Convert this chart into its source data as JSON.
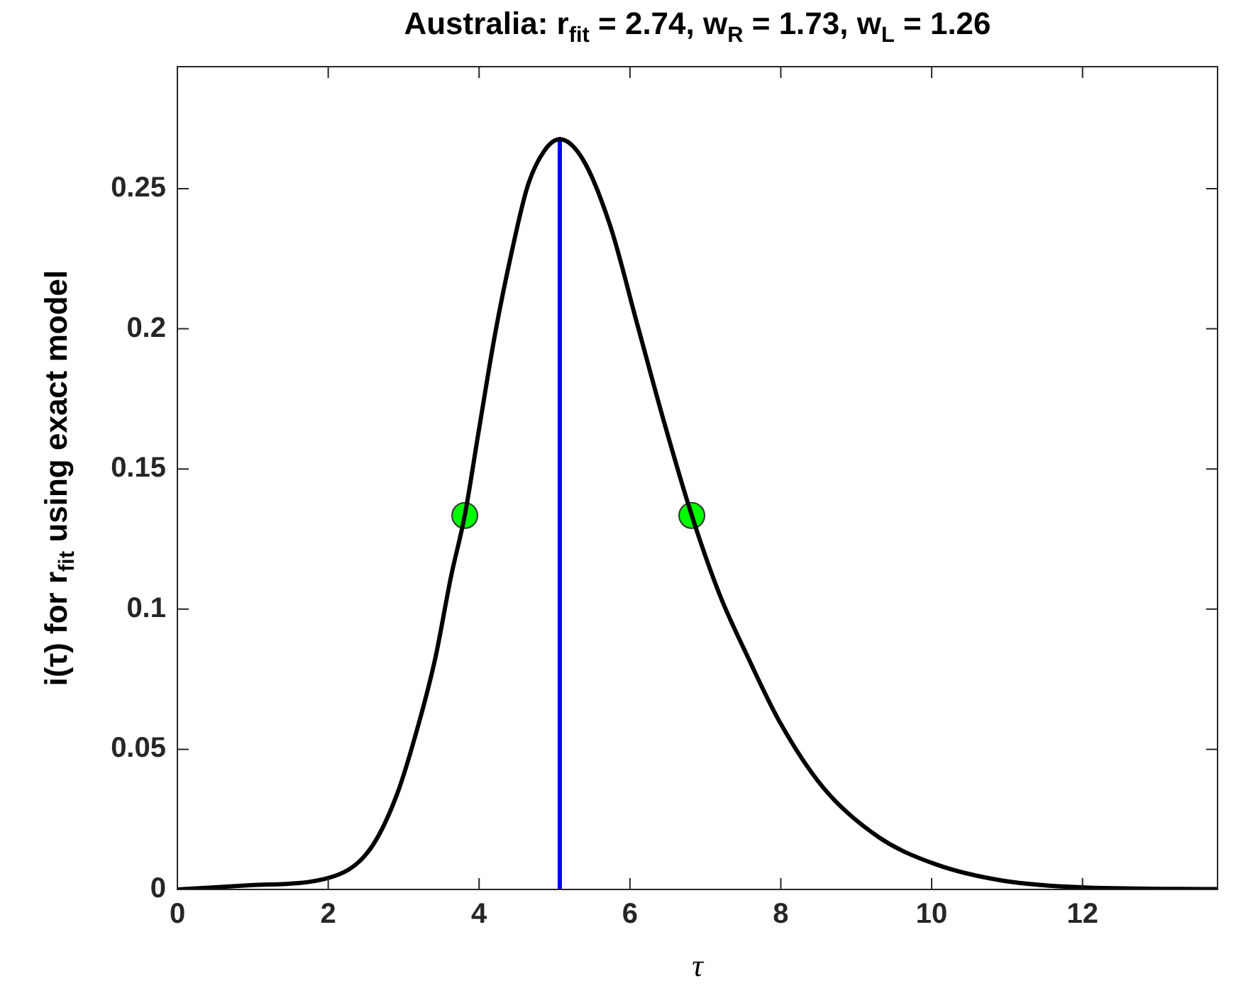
{
  "chart_data": {
    "type": "line",
    "title": "Australia: r$_{fit}$ = 2.74, w$_{R}$ = 1.73, w$_{L}$ = 1.26",
    "xlabel": "τ",
    "ylabel": "i(τ) for r$_{fit}$ using exact model",
    "xlim": [
      0,
      13.79
    ],
    "ylim": [
      0,
      0.2935
    ],
    "xticks": [
      0,
      2,
      4,
      6,
      8,
      10,
      12
    ],
    "yticks": [
      0,
      0.05,
      0.1,
      0.15,
      0.2,
      0.25
    ],
    "grid": false,
    "legend": false,
    "line_style": "solid",
    "series": [
      {
        "color": "#000000",
        "x": [
          0,
          0.97,
          2.0,
          2.55,
          2.91,
          3.2,
          3.42,
          3.63,
          3.81,
          3.99,
          4.21,
          4.43,
          4.64,
          4.86,
          5.07,
          5.38,
          5.74,
          6.1,
          6.46,
          6.82,
          7.19,
          7.55,
          7.98,
          8.56,
          9.29,
          10.05,
          10.95,
          12.04,
          13.79
        ],
        "values": [
          0,
          0.0015,
          0.0041,
          0.0142,
          0.0338,
          0.0592,
          0.0826,
          0.1119,
          0.1334,
          0.1627,
          0.1979,
          0.2271,
          0.2506,
          0.2633,
          0.2676,
          0.2602,
          0.2366,
          0.2013,
          0.166,
          0.1334,
          0.1051,
          0.0836,
          0.06,
          0.0364,
          0.0188,
          0.009,
          0.0031,
          0.0007,
          0.0001
        ]
      },
      {
        "color": "#0000ff",
        "x": [
          5.07,
          5.07
        ],
        "values": [
          0,
          0.2676
        ]
      },
      {
        "type": "scatter",
        "color": "#00ff00",
        "marker": "circle",
        "x": [
          3.81,
          6.82
        ],
        "values": [
          0.1334,
          0.1334
        ]
      }
    ]
  }
}
